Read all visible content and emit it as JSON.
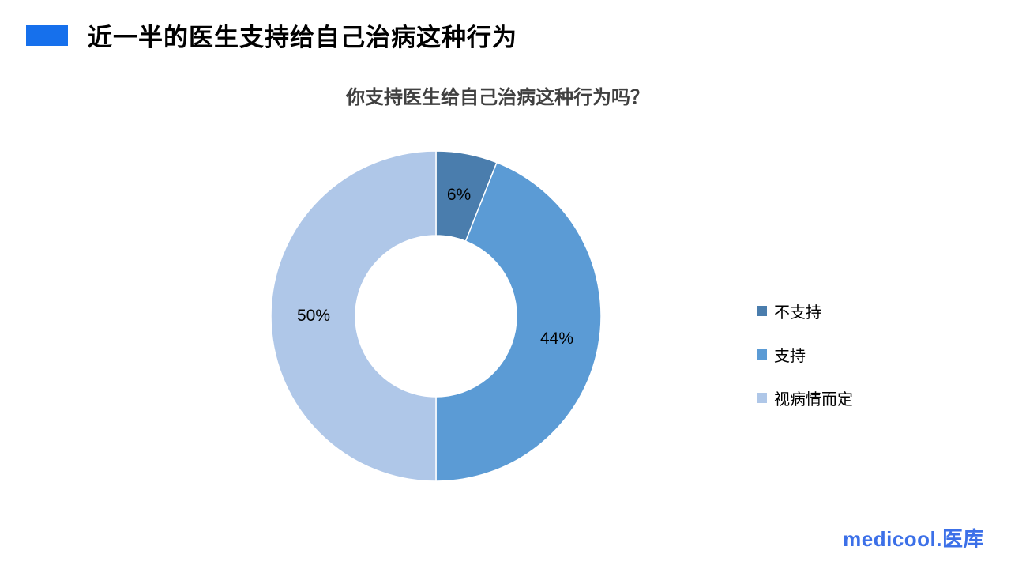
{
  "header": {
    "title": "近一半的医生支持给自己治病这种行为",
    "bullet_color": "#1670EC"
  },
  "chart_data": {
    "type": "pie",
    "subtype": "donut",
    "title": "你支持医生给自己治病这种行为吗？",
    "title_color": "#404040",
    "categories": [
      "不支持",
      "支持",
      "视病情而定"
    ],
    "values": [
      6,
      44,
      50
    ],
    "data_labels": [
      "6%",
      "44%",
      "50%"
    ],
    "colors": [
      "#4A7DAD",
      "#5B9BD5",
      "#AFC7E8"
    ],
    "start_angle_deg": 0,
    "direction": "clockwise",
    "inner_radius_ratio": 0.49,
    "legend_position": "right",
    "legend_items": [
      "不支持",
      "支持",
      "视病情而定"
    ]
  },
  "footer": {
    "logo_text": "medicool.医库",
    "logo_color": "#3C70E8"
  }
}
